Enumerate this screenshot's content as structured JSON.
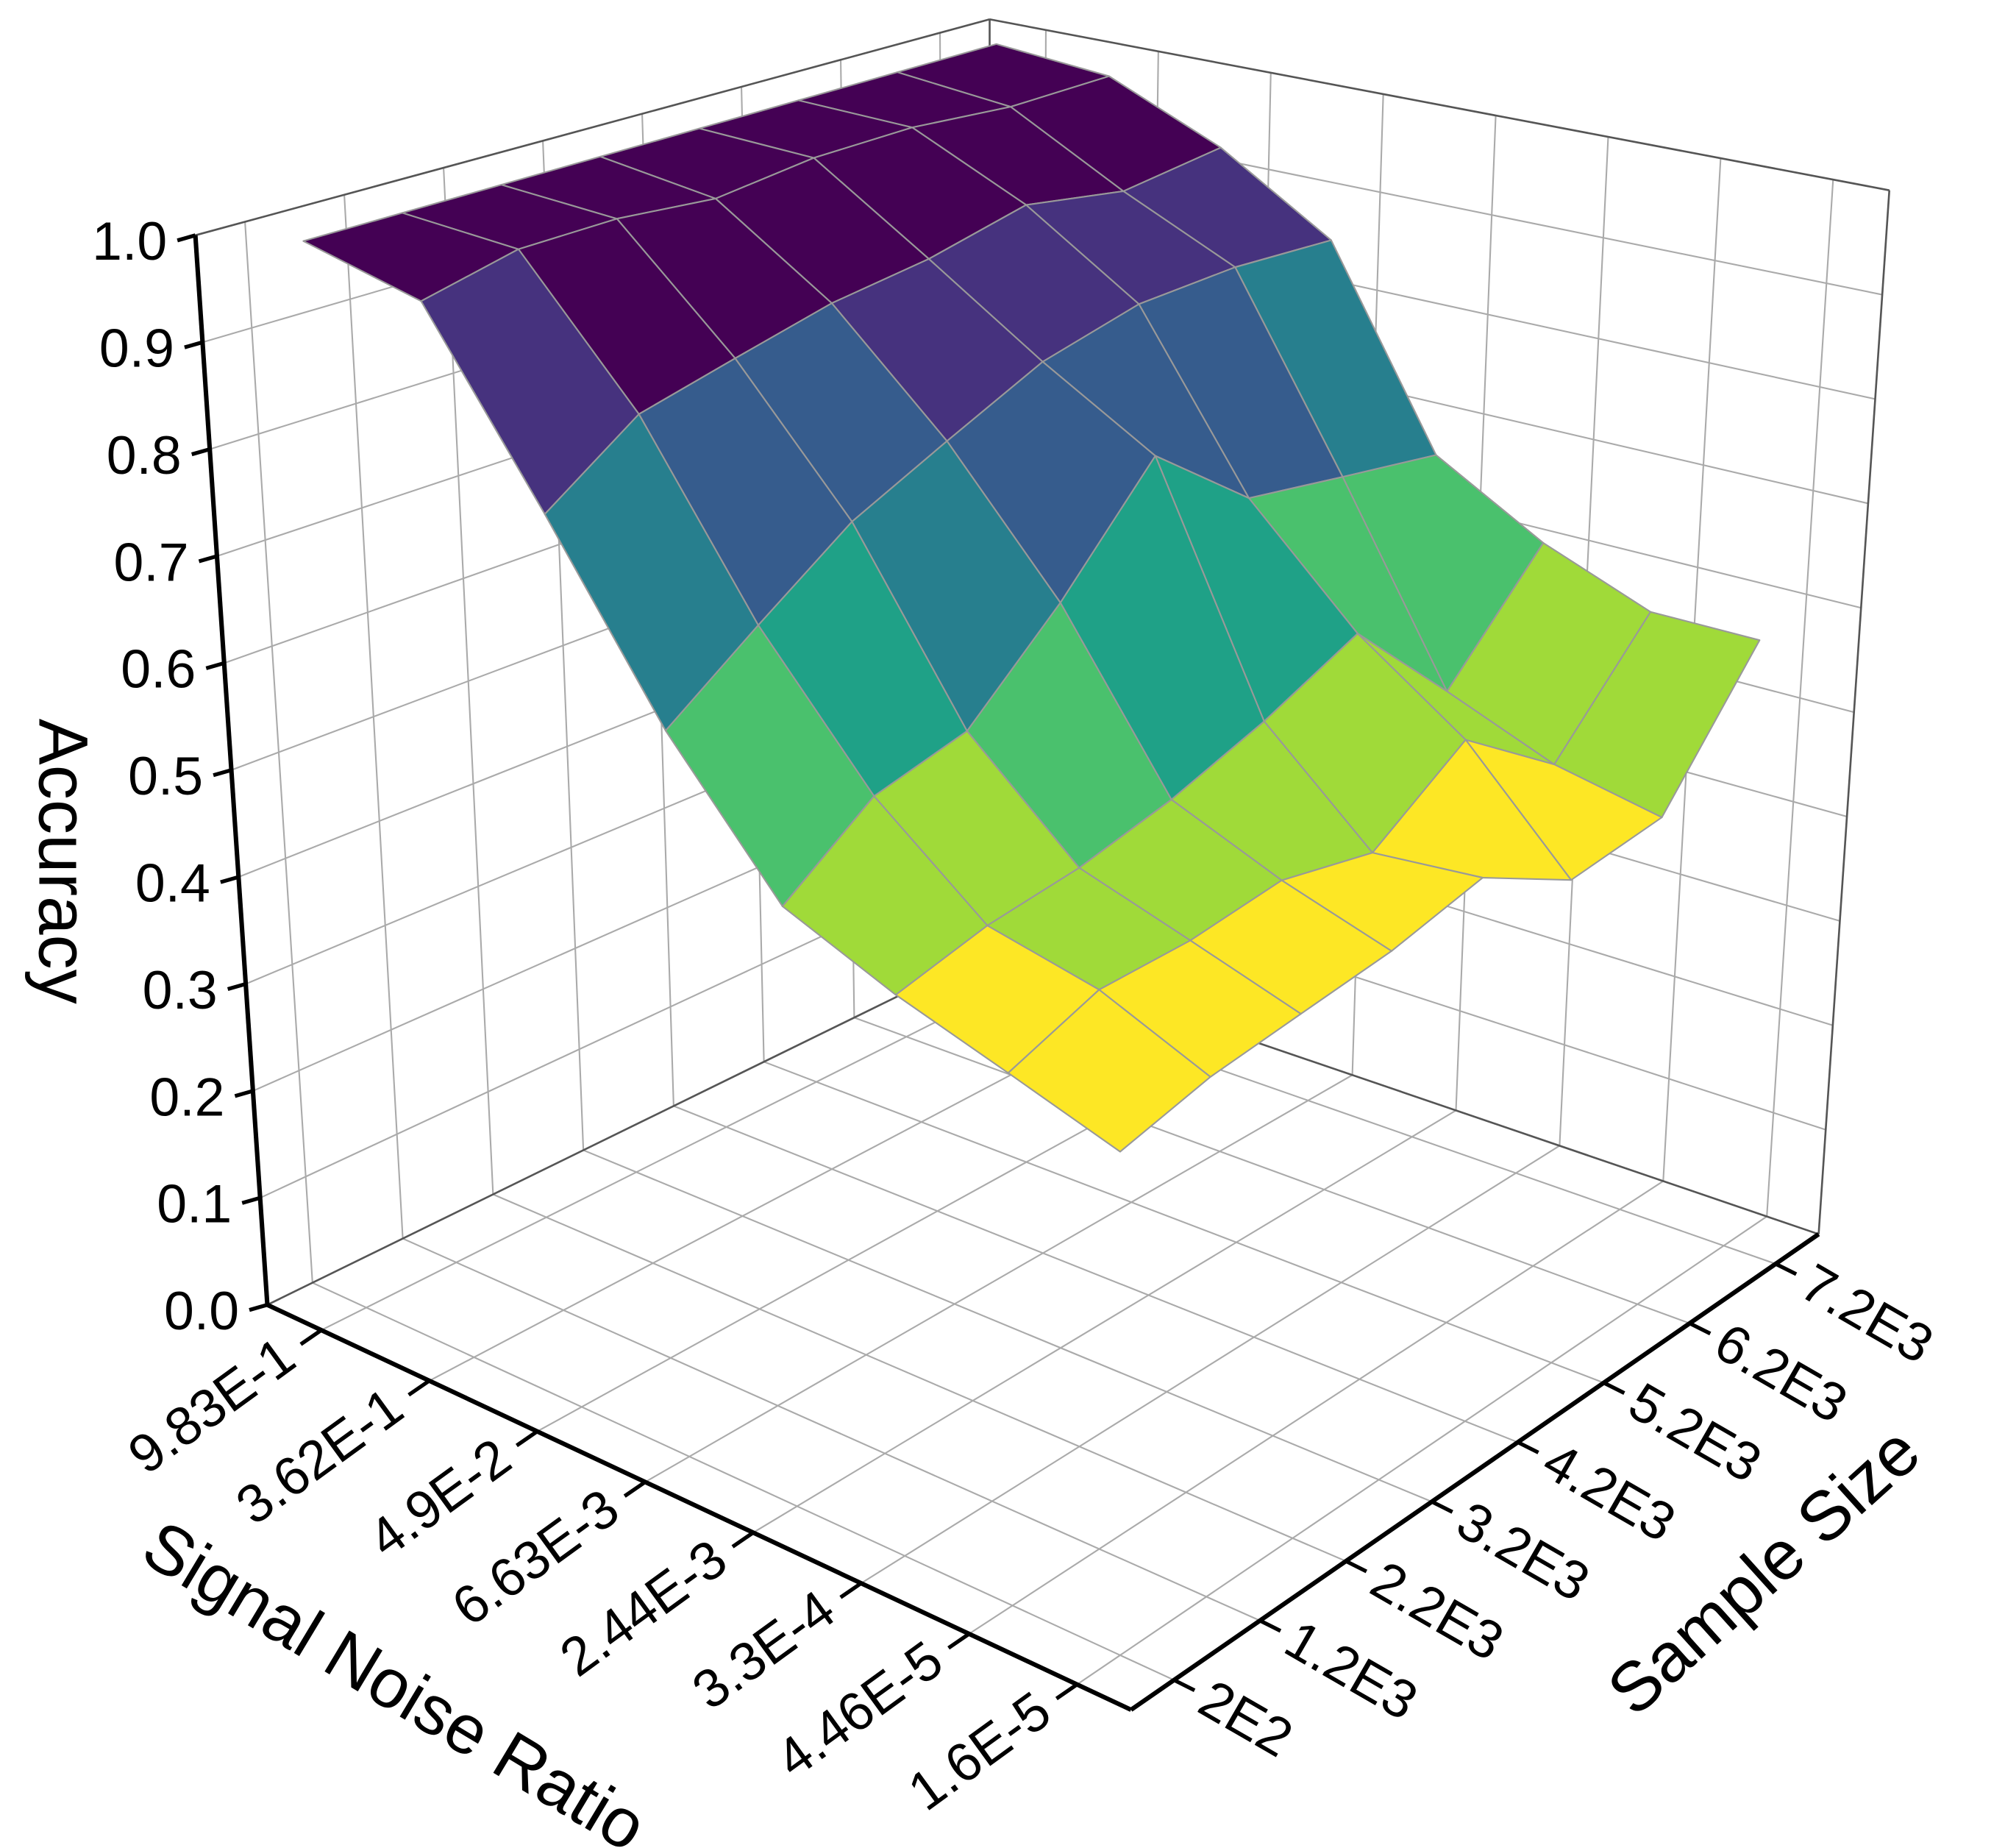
{
  "chart_data": {
    "type": "surface3d",
    "zlabel": "Accuracy",
    "xlabel": "Signal Noise Ratio",
    "ylabel": "Sample Size",
    "x": [
      "9.83E-1",
      "3.62E-1",
      "4.9E-2",
      "6.63E-3",
      "2.44E-3",
      "3.3E-4",
      "4.46E-5",
      "1.6E-5"
    ],
    "y": [
      "2E2",
      "1.2E3",
      "2.2E3",
      "3.2E3",
      "4.2E3",
      "5.2E3",
      "6.2E3",
      "7.2E3"
    ],
    "z": [
      [
        1.0,
        1.0,
        1.0,
        1.0,
        1.0,
        1.0,
        1.0,
        1.0
      ],
      [
        0.98,
        1.0,
        1.0,
        0.99,
        1.0,
        1.0,
        0.99,
        0.99
      ],
      [
        0.82,
        0.88,
        0.9,
        0.92,
        0.93,
        0.95,
        0.93,
        0.94
      ],
      [
        0.66,
        0.72,
        0.78,
        0.82,
        0.86,
        0.88,
        0.88,
        0.87
      ],
      [
        0.54,
        0.6,
        0.62,
        0.7,
        0.8,
        0.72,
        0.7,
        0.68
      ],
      [
        0.5,
        0.52,
        0.53,
        0.55,
        0.58,
        0.62,
        0.52,
        0.62
      ],
      [
        0.47,
        0.5,
        0.5,
        0.51,
        0.49,
        0.55,
        0.48,
        0.58
      ],
      [
        0.44,
        0.46,
        0.47,
        0.48,
        0.5,
        0.45,
        0.46,
        0.58
      ]
    ],
    "zlim": [
      0,
      1
    ],
    "zticks": [
      {
        "value": 0,
        "label": "0.0"
      },
      0.1,
      0.2,
      0.3,
      0.4,
      0.5,
      0.6,
      0.7,
      0.8,
      0.9,
      {
        "value": 1,
        "label": "1.0"
      }
    ],
    "colormap": [
      "#fde725",
      "#a0da39",
      "#4ac16d",
      "#1fa187",
      "#277f8e",
      "#365c8d",
      "#46327e",
      "#440154"
    ],
    "grid": true
  }
}
